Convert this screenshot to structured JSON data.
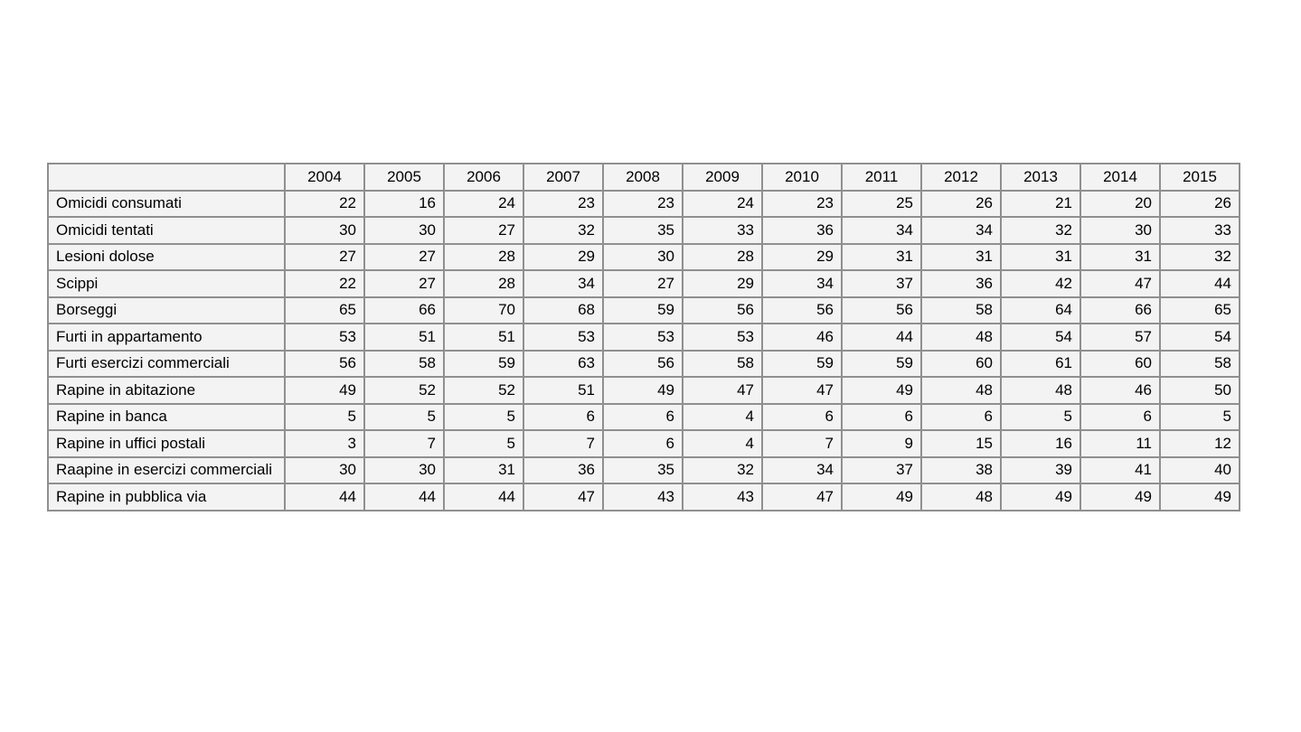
{
  "style": {
    "page_bg": "#ffffff",
    "cell_bg": "#f3f3f3",
    "border_color": "#8f8f8f",
    "text_color": "#000000"
  },
  "chart_data": {
    "type": "table",
    "corner_label": "",
    "columns": [
      "2004",
      "2005",
      "2006",
      "2007",
      "2008",
      "2009",
      "2010",
      "2011",
      "2012",
      "2013",
      "2014",
      "2015"
    ],
    "rows": [
      {
        "label": "Omicidi consumati",
        "values": [
          22,
          16,
          24,
          23,
          23,
          24,
          23,
          25,
          26,
          21,
          20,
          26
        ]
      },
      {
        "label": "Omicidi tentati",
        "values": [
          30,
          30,
          27,
          32,
          35,
          33,
          36,
          34,
          34,
          32,
          30,
          33
        ]
      },
      {
        "label": "Lesioni dolose",
        "values": [
          27,
          27,
          28,
          29,
          30,
          28,
          29,
          31,
          31,
          31,
          31,
          32
        ]
      },
      {
        "label": "Scippi",
        "values": [
          22,
          27,
          28,
          34,
          27,
          29,
          34,
          37,
          36,
          42,
          47,
          44
        ]
      },
      {
        "label": "Borseggi",
        "values": [
          65,
          66,
          70,
          68,
          59,
          56,
          56,
          56,
          58,
          64,
          66,
          65
        ]
      },
      {
        "label": "Furti in appartamento",
        "values": [
          53,
          51,
          51,
          53,
          53,
          53,
          46,
          44,
          48,
          54,
          57,
          54
        ]
      },
      {
        "label": "Furti esercizi commerciali",
        "values": [
          56,
          58,
          59,
          63,
          56,
          58,
          59,
          59,
          60,
          61,
          60,
          58
        ]
      },
      {
        "label": "Rapine in abitazione",
        "values": [
          49,
          52,
          52,
          51,
          49,
          47,
          47,
          49,
          48,
          48,
          46,
          50
        ]
      },
      {
        "label": "Rapine in banca",
        "values": [
          5,
          5,
          5,
          6,
          6,
          4,
          6,
          6,
          6,
          5,
          6,
          5
        ]
      },
      {
        "label": "Rapine in uffici postali",
        "values": [
          3,
          7,
          5,
          7,
          6,
          4,
          7,
          9,
          15,
          16,
          11,
          12
        ]
      },
      {
        "label": "Raapine in esercizi commerciali",
        "values": [
          30,
          30,
          31,
          36,
          35,
          32,
          34,
          37,
          38,
          39,
          41,
          40
        ]
      },
      {
        "label": "Rapine in pubblica via",
        "values": [
          44,
          44,
          44,
          47,
          43,
          43,
          47,
          49,
          48,
          49,
          49,
          49
        ]
      }
    ]
  }
}
